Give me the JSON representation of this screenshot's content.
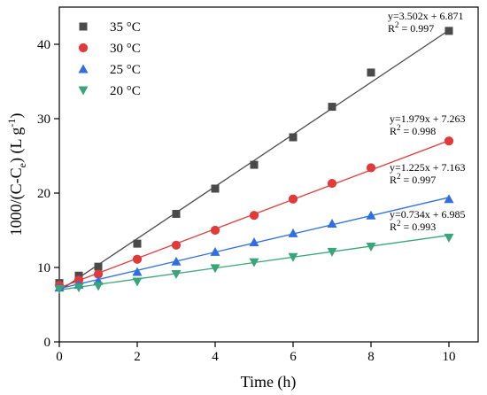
{
  "chart_data": {
    "type": "scatter",
    "xlabel": "Time (h)",
    "ylabel_parts": {
      "a": "1000/(C-C",
      "sub": "e",
      "b": ") (L g",
      "sup": "-1",
      "c": ")"
    },
    "xlim": [
      0,
      10.75
    ],
    "ylim": [
      0,
      45
    ],
    "xticks": [
      0,
      2,
      4,
      6,
      8,
      10
    ],
    "yticks": [
      0,
      10,
      20,
      30,
      40
    ],
    "legend_position": "top-left",
    "series": [
      {
        "name": "35 °C",
        "color": "#4a4a4a",
        "marker": "square",
        "x": [
          0,
          0.5,
          1,
          2,
          3,
          4,
          5,
          6,
          7,
          8,
          10
        ],
        "y": [
          7.9,
          8.9,
          10.1,
          13.2,
          17.2,
          20.6,
          23.8,
          27.5,
          31.6,
          36.2,
          41.8
        ],
        "fit": {
          "slope": 3.502,
          "intercept": 6.871
        },
        "equation": "y=3.502x + 6.871",
        "r2": "R",
        "r2_sup": "2",
        "r2_value": " = 0.997"
      },
      {
        "name": "30 °C",
        "color": "#e03a3a",
        "marker": "circle",
        "x": [
          0,
          0.5,
          1,
          2,
          3,
          4,
          5,
          6,
          7,
          8,
          10
        ],
        "y": [
          7.6,
          8.3,
          9.1,
          11.1,
          13.0,
          15.0,
          17.0,
          19.2,
          21.3,
          23.4,
          27.0
        ],
        "fit": {
          "slope": 1.979,
          "intercept": 7.263
        },
        "equation": "y=1.979x + 7.263",
        "r2": "R",
        "r2_sup": "2",
        "r2_value": " = 0.998"
      },
      {
        "name": "25 °C",
        "color": "#2f6fe0",
        "marker": "triangle-up",
        "x": [
          0,
          0.5,
          1,
          2,
          3,
          4,
          5,
          6,
          7,
          8,
          10
        ],
        "y": [
          7.3,
          7.7,
          8.2,
          9.4,
          10.8,
          12.1,
          13.4,
          14.6,
          15.9,
          17.0,
          19.2
        ],
        "fit": {
          "slope": 1.225,
          "intercept": 7.163
        },
        "equation": "y=1.225x + 7.163",
        "r2": "R",
        "r2_sup": "2",
        "r2_value": " = 0.997"
      },
      {
        "name": "20 °C",
        "color": "#3aa57a",
        "marker": "triangle-down",
        "x": [
          0,
          0.5,
          1,
          2,
          3,
          4,
          5,
          6,
          7,
          8,
          10
        ],
        "y": [
          7.1,
          7.3,
          7.5,
          8.1,
          9.1,
          9.9,
          10.7,
          11.4,
          12.1,
          12.8,
          14.0
        ],
        "fit": {
          "slope": 0.734,
          "intercept": 6.985
        },
        "equation": "y=0.734x + 6.985",
        "r2": "R",
        "r2_sup": "2",
        "r2_value": " = 0.993"
      }
    ]
  }
}
